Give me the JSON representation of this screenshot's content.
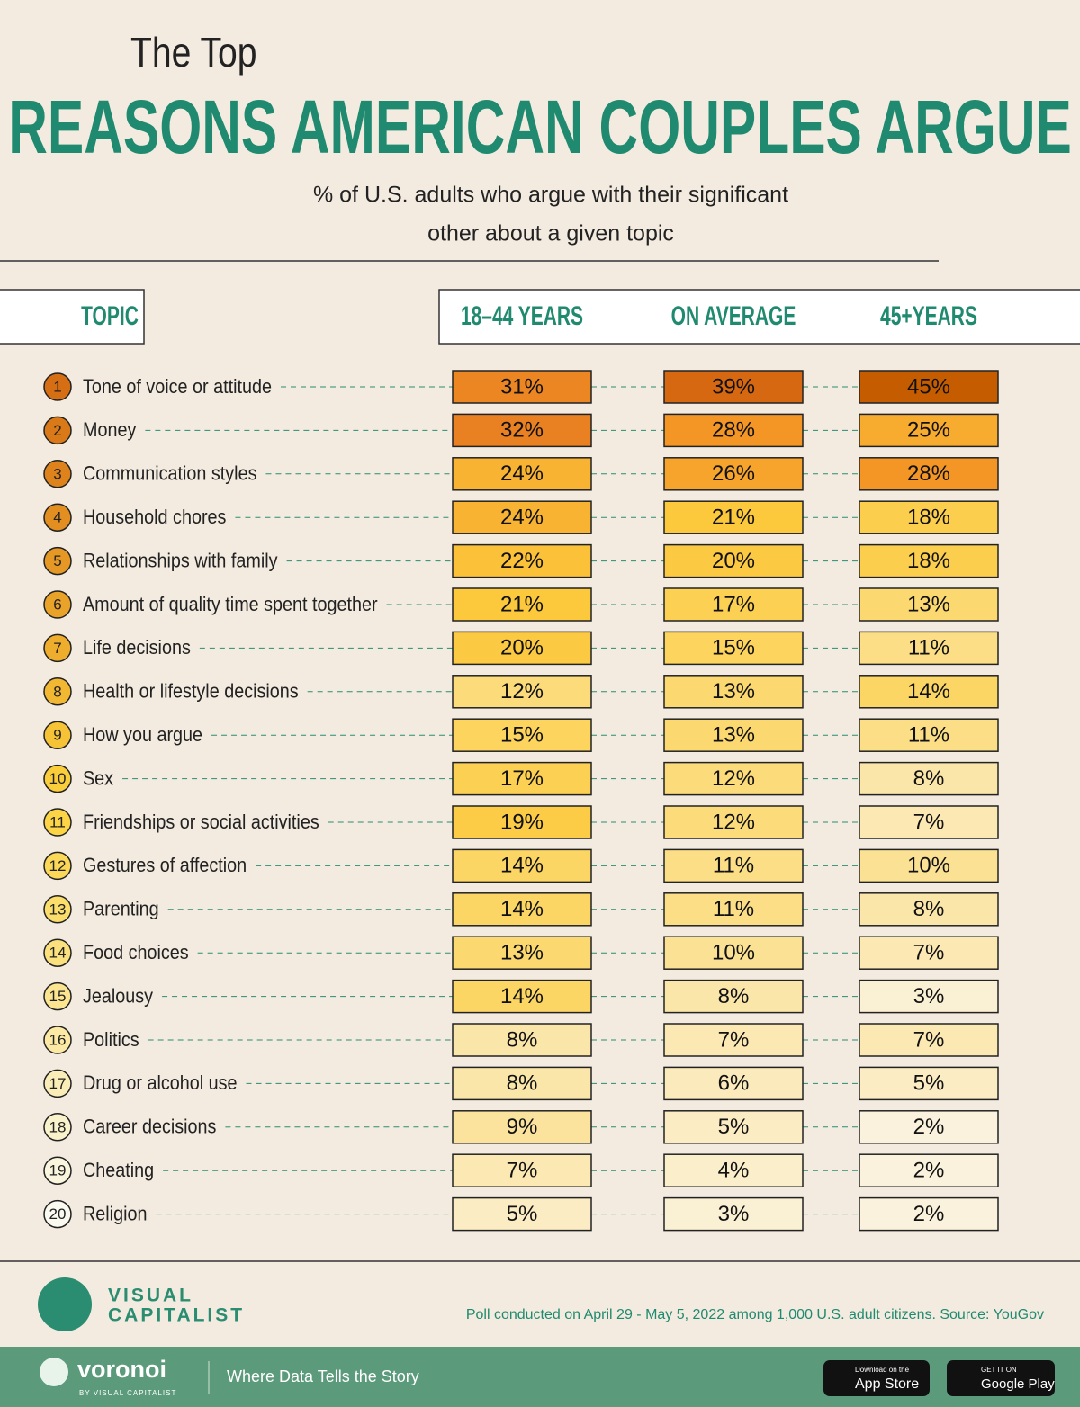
{
  "header": {
    "title_small": "The Top",
    "title": "REASONS AMERICAN COUPLES ARGUE",
    "subtitle_lines": [
      "% of U.S. adults who argue with their significant",
      "other about a given topic"
    ]
  },
  "table": {
    "columns": [
      "TOPIC",
      "18–44 YEARS",
      "ON AVERAGE",
      "45+YEARS"
    ],
    "rows": [
      {
        "rank": "1",
        "topic": "Tone of voice or attitude",
        "values": [
          31,
          39,
          45
        ],
        "value_labels": [
          "31%",
          "39%",
          "45%"
        ]
      },
      {
        "rank": "2",
        "topic": "Money",
        "values": [
          32,
          28,
          25
        ],
        "value_labels": [
          "32%",
          "28%",
          "25%"
        ]
      },
      {
        "rank": "3",
        "topic": "Communication styles",
        "values": [
          24,
          26,
          28
        ],
        "value_labels": [
          "24%",
          "26%",
          "28%"
        ]
      },
      {
        "rank": "4",
        "topic": "Household chores",
        "values": [
          24,
          21,
          18
        ],
        "value_labels": [
          "24%",
          "21%",
          "18%"
        ]
      },
      {
        "rank": "5",
        "topic": "Relationships with family",
        "values": [
          22,
          20,
          18
        ],
        "value_labels": [
          "22%",
          "20%",
          "18%"
        ]
      },
      {
        "rank": "6",
        "topic": "Amount of quality time spent together",
        "values": [
          21,
          17,
          13
        ],
        "value_labels": [
          "21%",
          "17%",
          "13%"
        ]
      },
      {
        "rank": "7",
        "topic": "Life decisions",
        "values": [
          20,
          15,
          11
        ],
        "value_labels": [
          "20%",
          "15%",
          "11%"
        ]
      },
      {
        "rank": "8",
        "topic": "Health or lifestyle decisions",
        "values": [
          12,
          13,
          14
        ],
        "value_labels": [
          "12%",
          "13%",
          "14%"
        ]
      },
      {
        "rank": "9",
        "topic": "How you argue",
        "values": [
          15,
          13,
          11
        ],
        "value_labels": [
          "15%",
          "13%",
          "11%"
        ]
      },
      {
        "rank": "10",
        "topic": "Sex",
        "values": [
          17,
          12,
          8
        ],
        "value_labels": [
          "17%",
          "12%",
          "8%"
        ]
      },
      {
        "rank": "11",
        "topic": "Friendships or social activities",
        "values": [
          19,
          12,
          7
        ],
        "value_labels": [
          "19%",
          "12%",
          "7%"
        ]
      },
      {
        "rank": "12",
        "topic": "Gestures of affection",
        "values": [
          14,
          11,
          10
        ],
        "value_labels": [
          "14%",
          "11%",
          "10%"
        ]
      },
      {
        "rank": "13",
        "topic": "Parenting",
        "values": [
          14,
          11,
          8
        ],
        "value_labels": [
          "14%",
          "11%",
          "8%"
        ]
      },
      {
        "rank": "14",
        "topic": "Food choices",
        "values": [
          13,
          10,
          7
        ],
        "value_labels": [
          "13%",
          "10%",
          "7%"
        ]
      },
      {
        "rank": "15",
        "topic": "Jealousy",
        "values": [
          14,
          8,
          3
        ],
        "value_labels": [
          "14%",
          "8%",
          "3%"
        ]
      },
      {
        "rank": "16",
        "topic": "Politics",
        "values": [
          8,
          7,
          7
        ],
        "value_labels": [
          "8%",
          "7%",
          "7%"
        ]
      },
      {
        "rank": "17",
        "topic": "Drug or alcohol use",
        "values": [
          8,
          6,
          5
        ],
        "value_labels": [
          "8%",
          "6%",
          "5%"
        ]
      },
      {
        "rank": "18",
        "topic": "Career decisions",
        "values": [
          9,
          5,
          2
        ],
        "value_labels": [
          "9%",
          "5%",
          "2%"
        ]
      },
      {
        "rank": "19",
        "topic": "Cheating",
        "values": [
          7,
          4,
          2
        ],
        "value_labels": [
          "7%",
          "4%",
          "2%"
        ]
      },
      {
        "rank": "20",
        "topic": "Religion",
        "values": [
          5,
          3,
          2
        ],
        "value_labels": [
          "5%",
          "3%",
          "2%"
        ]
      }
    ]
  },
  "footer": {
    "logo_line1": "VISUAL",
    "logo_line2": "CAPITALIST",
    "source": "Poll conducted on April 29 - May 5, 2022 among 1,000 U.S. adult citizens. Source: YouGov",
    "brand": "voronoi",
    "brand_sub": "BY VISUAL CAPITALIST",
    "tagline": "Where Data Tells the Story",
    "app_store_small": "Download on the",
    "app_store": "App Store",
    "google_small": "GET IT ON",
    "google": "Google Play"
  }
}
